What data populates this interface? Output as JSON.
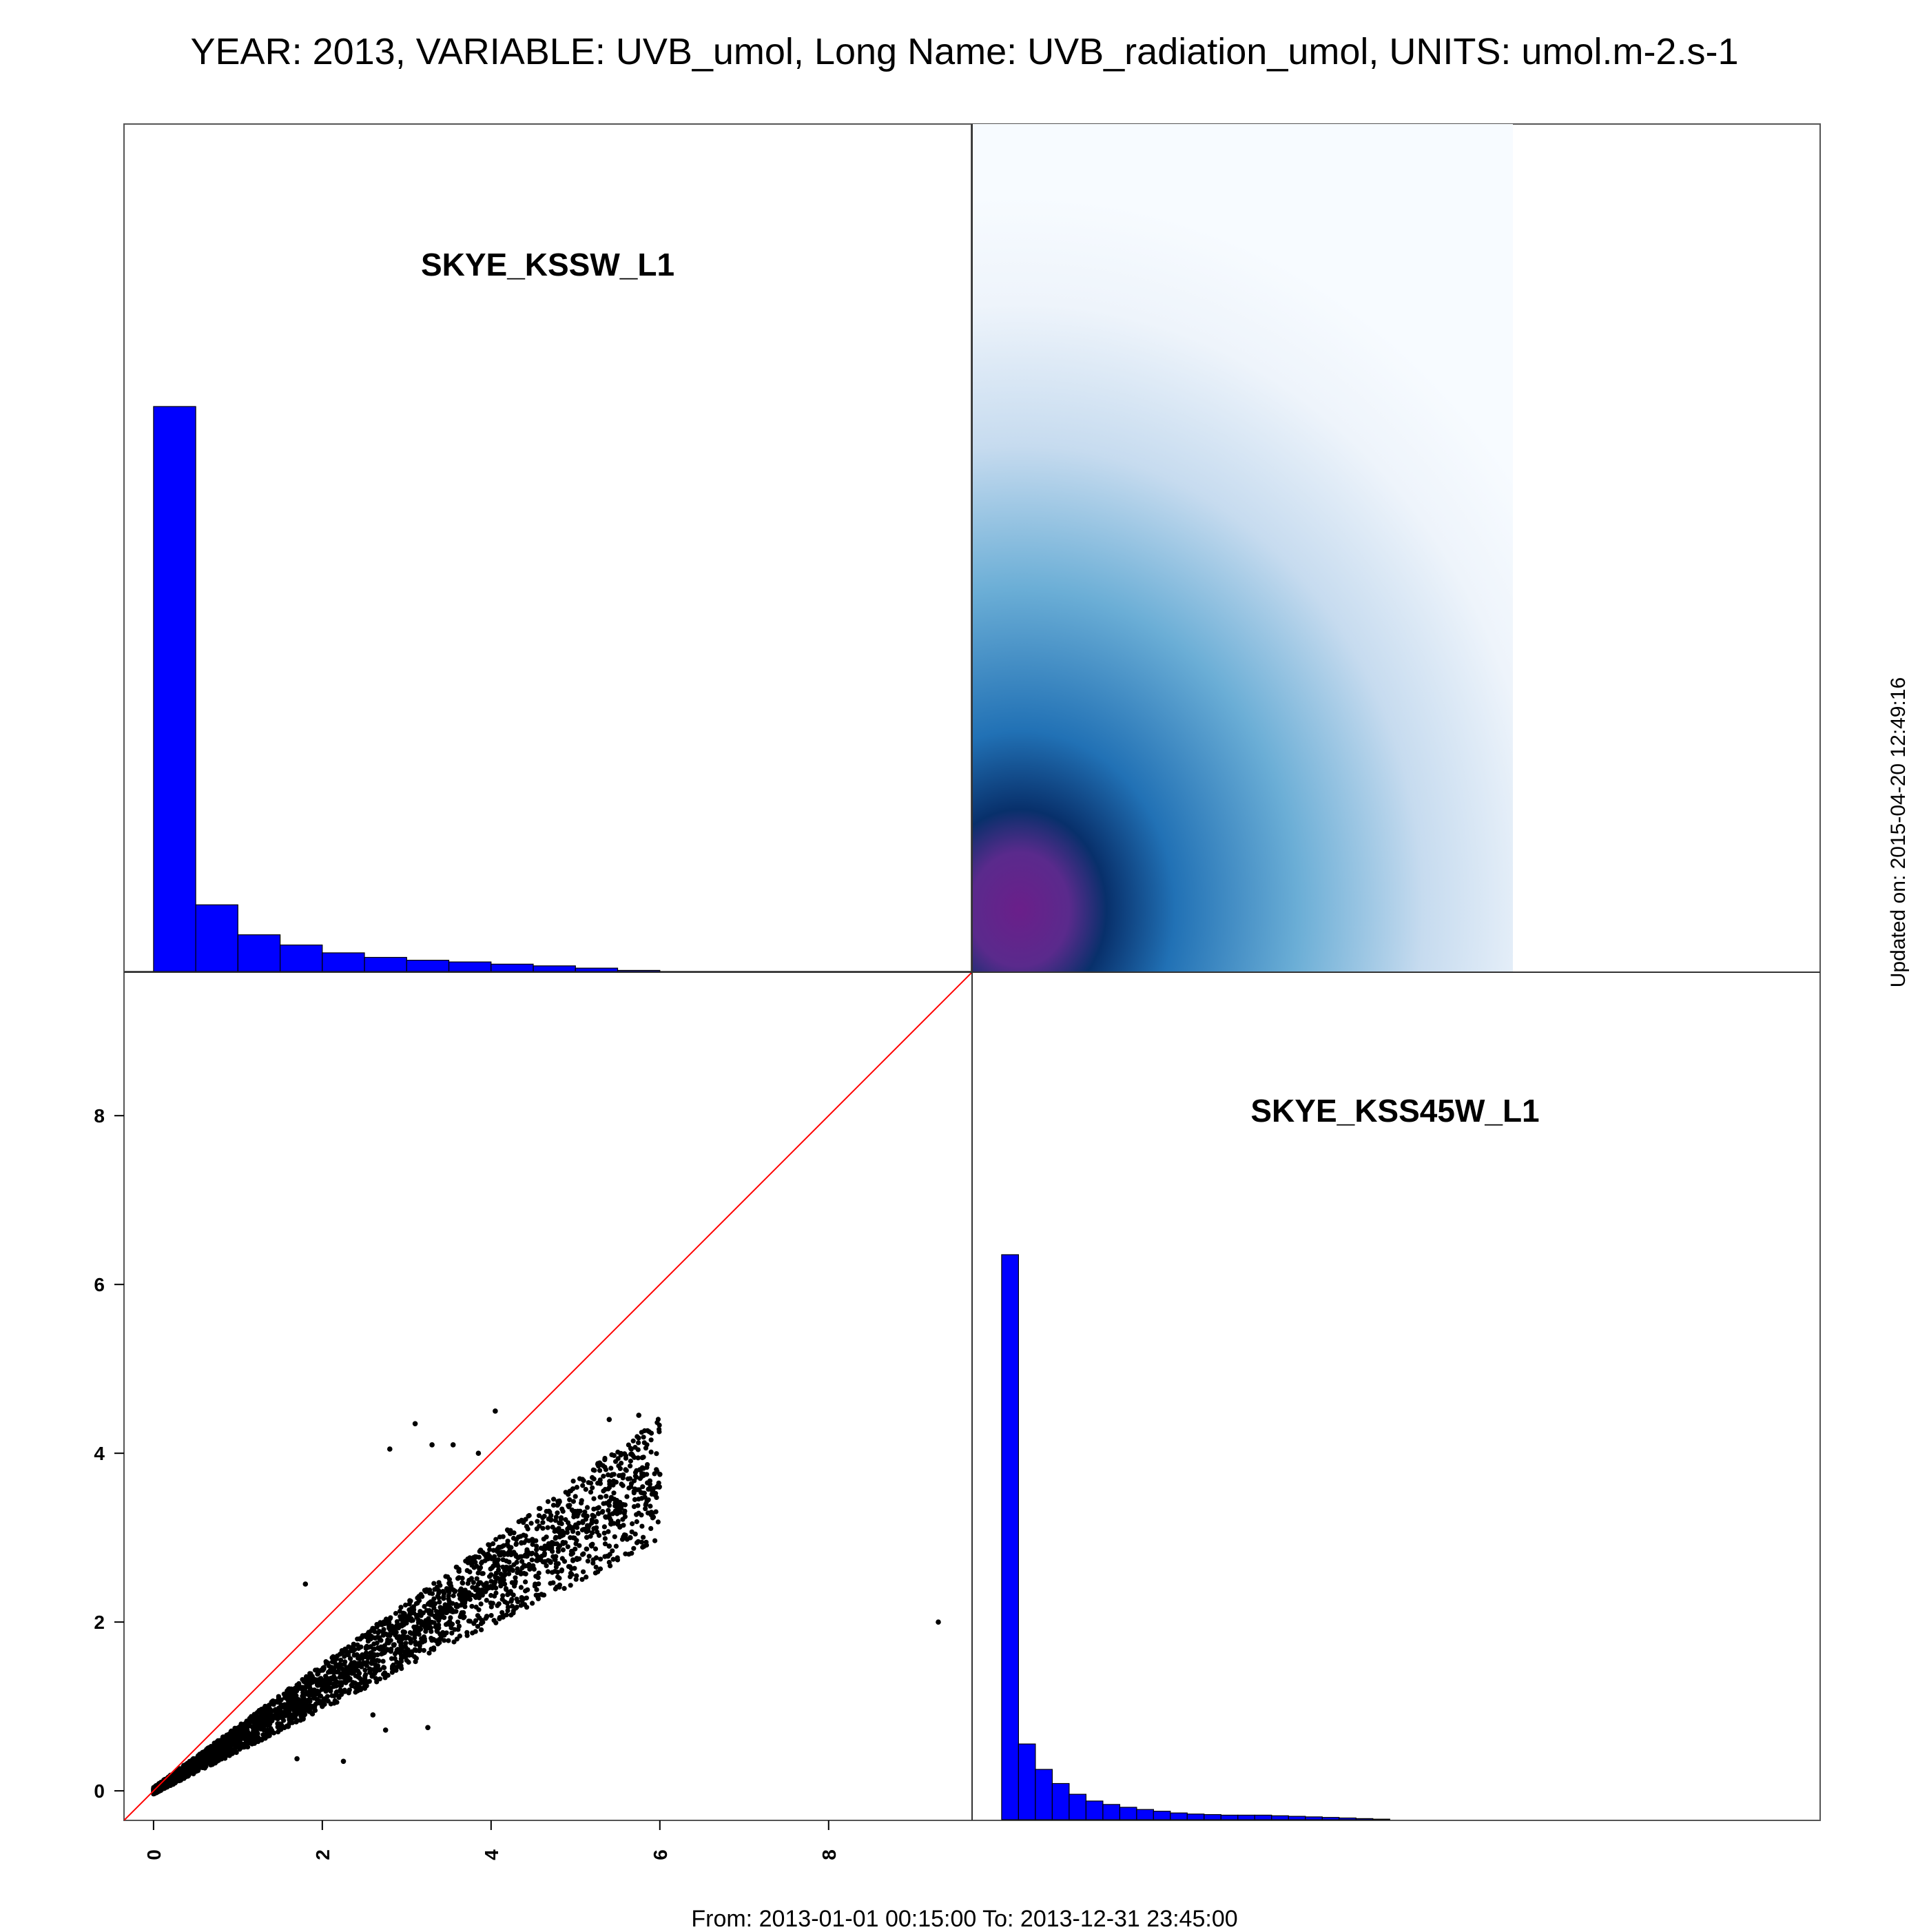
{
  "title": "YEAR: 2013, VARIABLE: UVB_umol, Long Name: UVB_radiation_umol, UNITS: umol.m-2.s-1",
  "footer": "From: 2013-01-01 00:15:00 To: 2013-12-31 23:45:00",
  "updated": "Updated on: 2015-04-20 12:49:16",
  "colors": {
    "histogram_fill": "#0000ff",
    "points": "#000000",
    "identity_line": "#ff0000",
    "density_low": "#f7fbff",
    "density_mid": "#4a98c9",
    "density_high": "#08306b",
    "density_peak": "#6a1f8a"
  },
  "chart_data": [
    {
      "type": "histogram",
      "panel": "top-left",
      "variable": "SKYE_KSSW_L1",
      "bin_edges": [
        0,
        0.5,
        1,
        1.5,
        2,
        2.5,
        3,
        3.5,
        4,
        4.5,
        5,
        5.5,
        6
      ],
      "relative_heights": [
        1.0,
        0.118,
        0.065,
        0.047,
        0.033,
        0.025,
        0.02,
        0.017,
        0.013,
        0.01,
        0.006,
        0.002
      ]
    },
    {
      "type": "heatmap",
      "panel": "top-right",
      "description_x": "SKYE_KSSW_L1",
      "description_y": "SKYE_KSS45W_L1",
      "xlim": [
        -0.35,
        9.7
      ],
      "ylim": [
        -0.35,
        9.7
      ],
      "peak": [
        0.55,
        0.75
      ]
    },
    {
      "type": "scatter",
      "panel": "bottom-left",
      "xlabel": "SKYE_KSSW_L1",
      "ylabel": "SKYE_KSS45W_L1",
      "xlim": [
        -0.35,
        9.7
      ],
      "ylim": [
        -0.35,
        9.7
      ],
      "x_ticks": [
        "0",
        "2",
        "4",
        "6",
        "8"
      ],
      "y_ticks": [
        "0",
        "2",
        "4",
        "6",
        "8"
      ],
      "x_tick_values": [
        0,
        2,
        4,
        6,
        8
      ],
      "y_tick_values": [
        0,
        2,
        4,
        6,
        8
      ],
      "identity_line": true,
      "main_trend": {
        "x_max": 6.0,
        "slope_upper": 0.67,
        "slope_lower": 0.56
      },
      "outliers": [
        [
          9.3,
          2.0
        ],
        [
          3.1,
          4.35
        ],
        [
          4.05,
          4.5
        ],
        [
          2.8,
          4.05
        ],
        [
          3.3,
          4.1
        ],
        [
          3.55,
          4.1
        ],
        [
          3.85,
          4.0
        ],
        [
          5.75,
          4.45
        ],
        [
          5.4,
          4.4
        ],
        [
          5.9,
          3.3
        ],
        [
          6.0,
          3.75
        ],
        [
          2.75,
          0.72
        ],
        [
          3.25,
          0.75
        ],
        [
          2.25,
          0.35
        ],
        [
          1.7,
          0.38
        ],
        [
          5.4,
          2.9
        ],
        [
          5.65,
          3.0
        ],
        [
          1.8,
          2.45
        ],
        [
          2.0,
          1.0
        ],
        [
          2.6,
          0.9
        ]
      ]
    },
    {
      "type": "histogram",
      "panel": "bottom-right",
      "variable": "SKYE_KSS45W_L1",
      "bin_edges": [
        0,
        0.2,
        0.4,
        0.6,
        0.8,
        1.0,
        1.2,
        1.4,
        1.6,
        1.8,
        2.0,
        2.2,
        2.4,
        2.6,
        2.8,
        3.0,
        3.2,
        3.4,
        3.6,
        3.8,
        4.0,
        4.2,
        4.4,
        4.6
      ],
      "relative_heights": [
        1.0,
        0.134,
        0.089,
        0.064,
        0.045,
        0.033,
        0.027,
        0.022,
        0.018,
        0.015,
        0.012,
        0.01,
        0.009,
        0.008,
        0.008,
        0.008,
        0.007,
        0.006,
        0.005,
        0.004,
        0.003,
        0.002,
        0.001
      ]
    }
  ]
}
